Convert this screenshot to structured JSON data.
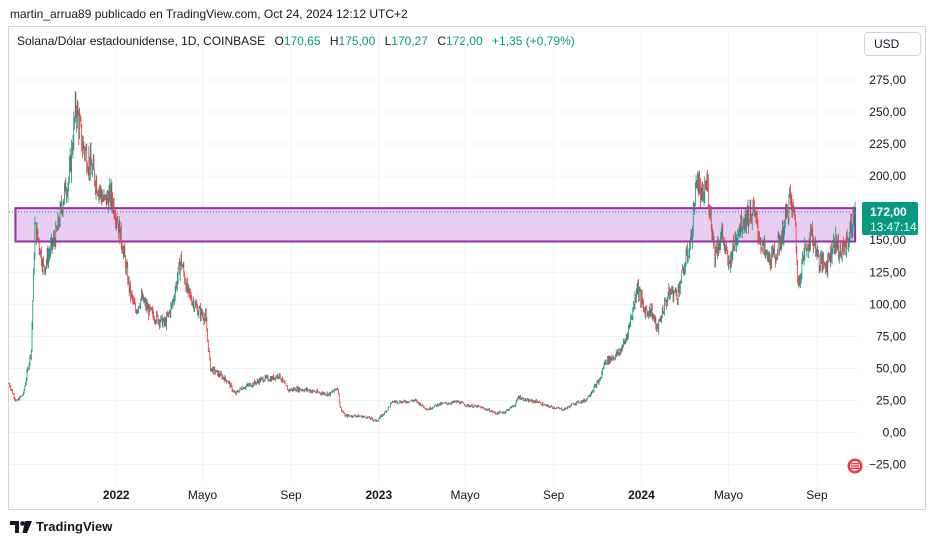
{
  "caption": "martin_arrua89 publicado en TradingView.com, Oct 24, 2024 12:12 UTC+2",
  "legend": {
    "symbol": "Solana/Dólar estadounidense, 1D, COINBASE",
    "o_label": "O",
    "o_value": "170,65",
    "h_label": "H",
    "h_value": "175,00",
    "l_label": "L",
    "l_value": "170,27",
    "c_label": "C",
    "c_value": "172,00",
    "change": "+1,35 (+0,79%)"
  },
  "currency_button": "USD",
  "last_price_label": "172,00",
  "countdown_label": "13:47:14",
  "footer_brand": "TradingView",
  "colors": {
    "up": "#089981",
    "down": "#f23645",
    "zone_fill": "#e7cef0",
    "zone_border": "#9c27b0",
    "price_tag": "#089981"
  },
  "chart_data": {
    "type": "candlestick",
    "symbol": "SOLUSD",
    "timeframe": "1D",
    "ylim": [
      -35,
      300
    ],
    "y_ticks": [
      "275,00",
      "250,00",
      "225,00",
      "200,00",
      "175,00",
      "150,00",
      "125,00",
      "100,00",
      "75,00",
      "50,00",
      "25,00",
      "0,00",
      "−25,00"
    ],
    "y_tick_values": [
      275,
      250,
      225,
      200,
      175,
      150,
      125,
      100,
      75,
      50,
      25,
      0,
      -25
    ],
    "x_ticks": [
      {
        "label": "2022",
        "date": "2022-01-01",
        "bold": true
      },
      {
        "label": "Mayo",
        "date": "2022-05-01",
        "bold": false
      },
      {
        "label": "Sep",
        "date": "2022-09-01",
        "bold": false
      },
      {
        "label": "2023",
        "date": "2023-01-01",
        "bold": true
      },
      {
        "label": "Mayo",
        "date": "2023-05-01",
        "bold": false
      },
      {
        "label": "Sep",
        "date": "2023-09-01",
        "bold": false
      },
      {
        "label": "2024",
        "date": "2024-01-01",
        "bold": true
      },
      {
        "label": "Mayo",
        "date": "2024-05-01",
        "bold": false
      },
      {
        "label": "Sep",
        "date": "2024-09-01",
        "bold": false
      }
    ],
    "x_range": [
      "2021-08-05",
      "2024-10-28"
    ],
    "last_price": 172.0,
    "zone": {
      "from_date": "2021-08-14",
      "to_date": "2024-10-24",
      "low": 149,
      "high": 175
    },
    "series_close": [
      [
        "2021-08-05",
        38
      ],
      [
        "2021-08-15",
        24
      ],
      [
        "2021-08-25",
        30
      ],
      [
        "2021-09-05",
        65
      ],
      [
        "2021-09-10",
        160
      ],
      [
        "2021-09-15",
        150
      ],
      [
        "2021-09-22",
        128
      ],
      [
        "2021-09-30",
        140
      ],
      [
        "2021-10-10",
        155
      ],
      [
        "2021-10-20",
        185
      ],
      [
        "2021-10-28",
        200
      ],
      [
        "2021-11-06",
        255
      ],
      [
        "2021-11-15",
        225
      ],
      [
        "2021-11-25",
        210
      ],
      [
        "2021-12-05",
        195
      ],
      [
        "2021-12-15",
        180
      ],
      [
        "2021-12-25",
        185
      ],
      [
        "2022-01-01",
        170
      ],
      [
        "2022-01-10",
        145
      ],
      [
        "2022-01-20",
        110
      ],
      [
        "2022-01-28",
        95
      ],
      [
        "2022-02-05",
        105
      ],
      [
        "2022-02-15",
        95
      ],
      [
        "2022-02-25",
        90
      ],
      [
        "2022-03-10",
        85
      ],
      [
        "2022-03-20",
        100
      ],
      [
        "2022-04-01",
        135
      ],
      [
        "2022-04-10",
        110
      ],
      [
        "2022-04-25",
        95
      ],
      [
        "2022-05-05",
        90
      ],
      [
        "2022-05-12",
        50
      ],
      [
        "2022-05-25",
        45
      ],
      [
        "2022-06-05",
        40
      ],
      [
        "2022-06-15",
        30
      ],
      [
        "2022-06-25",
        35
      ],
      [
        "2022-07-10",
        38
      ],
      [
        "2022-07-25",
        42
      ],
      [
        "2022-08-05",
        42
      ],
      [
        "2022-08-15",
        45
      ],
      [
        "2022-08-28",
        33
      ],
      [
        "2022-09-10",
        34
      ],
      [
        "2022-09-25",
        33
      ],
      [
        "2022-10-10",
        31
      ],
      [
        "2022-10-25",
        30
      ],
      [
        "2022-11-05",
        35
      ],
      [
        "2022-11-08",
        20
      ],
      [
        "2022-11-15",
        13
      ],
      [
        "2022-11-30",
        13
      ],
      [
        "2022-12-15",
        12
      ],
      [
        "2022-12-29",
        9
      ],
      [
        "2023-01-10",
        16
      ],
      [
        "2023-01-20",
        24
      ],
      [
        "2023-02-05",
        24
      ],
      [
        "2023-02-20",
        25
      ],
      [
        "2023-03-10",
        18
      ],
      [
        "2023-03-25",
        22
      ],
      [
        "2023-04-10",
        23
      ],
      [
        "2023-04-20",
        24
      ],
      [
        "2023-05-05",
        21
      ],
      [
        "2023-05-20",
        20
      ],
      [
        "2023-06-05",
        17
      ],
      [
        "2023-06-12",
        15
      ],
      [
        "2023-06-25",
        16
      ],
      [
        "2023-07-10",
        22
      ],
      [
        "2023-07-14",
        28
      ],
      [
        "2023-07-25",
        25
      ],
      [
        "2023-08-10",
        24
      ],
      [
        "2023-08-20",
        21
      ],
      [
        "2023-09-05",
        19
      ],
      [
        "2023-09-15",
        18
      ],
      [
        "2023-10-01",
        23
      ],
      [
        "2023-10-15",
        25
      ],
      [
        "2023-10-25",
        33
      ],
      [
        "2023-11-05",
        42
      ],
      [
        "2023-11-11",
        55
      ],
      [
        "2023-11-20",
        58
      ],
      [
        "2023-12-01",
        62
      ],
      [
        "2023-12-10",
        72
      ],
      [
        "2023-12-20",
        95
      ],
      [
        "2023-12-26",
        115
      ],
      [
        "2024-01-05",
        95
      ],
      [
        "2024-01-15",
        95
      ],
      [
        "2024-01-23",
        80
      ],
      [
        "2024-02-01",
        98
      ],
      [
        "2024-02-10",
        110
      ],
      [
        "2024-02-20",
        108
      ],
      [
        "2024-03-01",
        130
      ],
      [
        "2024-03-10",
        150
      ],
      [
        "2024-03-18",
        200
      ],
      [
        "2024-03-25",
        180
      ],
      [
        "2024-04-01",
        195
      ],
      [
        "2024-04-12",
        140
      ],
      [
        "2024-04-22",
        155
      ],
      [
        "2024-05-01",
        130
      ],
      [
        "2024-05-15",
        160
      ],
      [
        "2024-05-25",
        168
      ],
      [
        "2024-06-05",
        172
      ],
      [
        "2024-06-15",
        148
      ],
      [
        "2024-06-25",
        135
      ],
      [
        "2024-07-05",
        138
      ],
      [
        "2024-07-15",
        155
      ],
      [
        "2024-07-25",
        182
      ],
      [
        "2024-08-02",
        165
      ],
      [
        "2024-08-05",
        115
      ],
      [
        "2024-08-15",
        142
      ],
      [
        "2024-08-25",
        155
      ],
      [
        "2024-09-05",
        132
      ],
      [
        "2024-09-15",
        132
      ],
      [
        "2024-09-25",
        150
      ],
      [
        "2024-10-05",
        140
      ],
      [
        "2024-10-15",
        152
      ],
      [
        "2024-10-24",
        172
      ]
    ]
  }
}
